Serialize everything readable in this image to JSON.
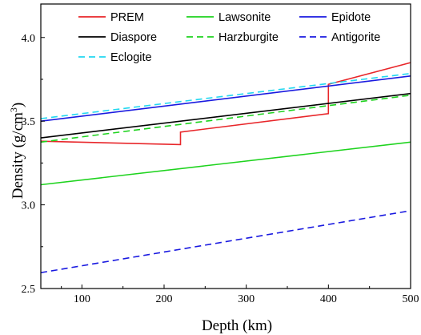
{
  "chart_data": {
    "type": "line",
    "title": "",
    "xlabel": "Depth (km)",
    "ylabel": "Density (g/cm",
    "ylabel_sup": "3",
    "ylabel_close": ")",
    "xlim": [
      50,
      500
    ],
    "ylim": [
      2.5,
      4.2
    ],
    "xticks": [
      100,
      200,
      300,
      400,
      500
    ],
    "xtick_labels": [
      "100",
      "200",
      "300",
      "400",
      "500"
    ],
    "yticks": [
      2.5,
      3.0,
      3.5,
      4.0
    ],
    "ytick_labels": [
      "2.5",
      "3.0",
      "3.5",
      "4.0"
    ],
    "grid": false,
    "legend_position": "top",
    "series": [
      {
        "name": "PREM",
        "color": "#e8262a",
        "dash": "solid",
        "x": [
          50,
          220,
          220,
          400,
          400,
          500
        ],
        "y": [
          3.38,
          3.36,
          3.435,
          3.545,
          3.72,
          3.85
        ]
      },
      {
        "name": "Lawsonite",
        "color": "#1ed31e",
        "dash": "solid",
        "x": [
          50,
          500
        ],
        "y": [
          3.12,
          3.375
        ]
      },
      {
        "name": "Epidote",
        "color": "#1a1ae0",
        "dash": "solid",
        "x": [
          50,
          500
        ],
        "y": [
          3.5,
          3.77
        ]
      },
      {
        "name": "Diaspore",
        "color": "#000000",
        "dash": "solid",
        "x": [
          50,
          500
        ],
        "y": [
          3.4,
          3.665
        ]
      },
      {
        "name": "Harzburgite",
        "color": "#1ed31e",
        "dash": "dashed",
        "x": [
          50,
          500
        ],
        "y": [
          3.375,
          3.655
        ]
      },
      {
        "name": "Antigorite",
        "color": "#1a1ae0",
        "dash": "dashed",
        "x": [
          50,
          500
        ],
        "y": [
          2.595,
          2.965
        ]
      },
      {
        "name": "Eclogite",
        "color": "#22d8f0",
        "dash": "dashed",
        "x": [
          50,
          500
        ],
        "y": [
          3.515,
          3.785
        ]
      }
    ]
  }
}
